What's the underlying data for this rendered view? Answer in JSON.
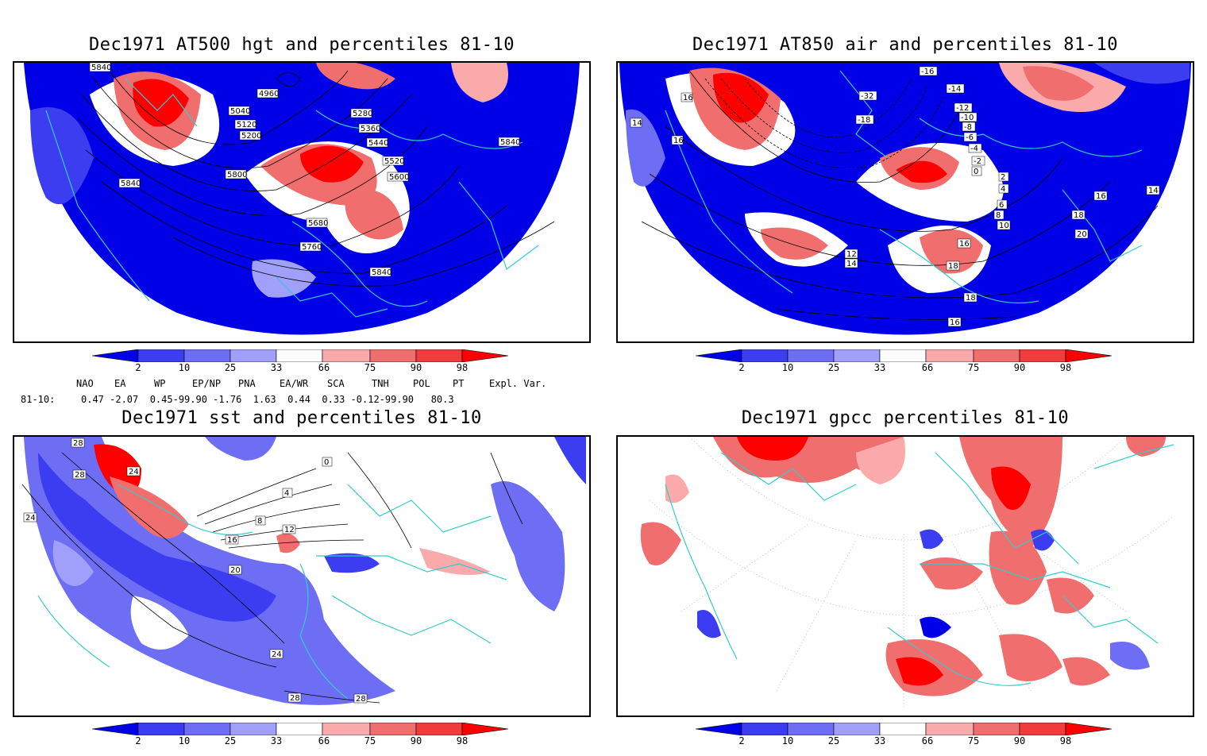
{
  "panels": {
    "hgt": {
      "title": "Dec1971 AT500 hgt and percentiles 81-10",
      "contour_labels": [
        "5840",
        "4960",
        "5040",
        "5120",
        "5200",
        "5280",
        "5360",
        "5440",
        "5520",
        "5600",
        "5680",
        "5760",
        "5800",
        "5840",
        "5840",
        "5840"
      ]
    },
    "air": {
      "title": "Dec1971 AT850 air and percentiles 81-10",
      "contour_labels": [
        "16",
        "14",
        "16",
        "-18",
        "-32",
        "-16",
        "-14",
        "-12",
        "-10",
        "-8",
        "-6",
        "-4",
        "-2",
        "0",
        "2",
        "4",
        "6",
        "8",
        "10",
        "12",
        "14",
        "16",
        "18",
        "20",
        "14",
        "16",
        "18",
        "16",
        "18"
      ]
    },
    "sst": {
      "title": "Dec1971 sst and percentiles 81-10",
      "contour_labels": [
        "28",
        "24",
        "28",
        "24",
        "0",
        "4",
        "8",
        "12",
        "16",
        "20",
        "24",
        "28",
        "28"
      ]
    },
    "gpcc": {
      "title": "Dec1971 gpcc percentiles 81-10"
    }
  },
  "colorbar": {
    "labels": [
      "2",
      "10",
      "25",
      "33",
      "66",
      "75",
      "90",
      "98"
    ],
    "colors": [
      "#0000e6",
      "#3c3cf0",
      "#6e6ef5",
      "#a0a0fa",
      "#ffffff",
      "#faaaaa",
      "#f06e6e",
      "#f03c3c",
      "#ff0000"
    ]
  },
  "indices": {
    "header": [
      "NAO",
      "EA",
      "WP",
      "EP/NP",
      "PNA",
      "EA/WR",
      "SCA",
      "TNH",
      "POL",
      "PT",
      "Expl. Var."
    ],
    "row_label": "81-10:",
    "values_line": "0.47 -2.07  0.45-99.90 -1.76  1.63  0.44  0.33 -0.12-99.90   80.3"
  }
}
